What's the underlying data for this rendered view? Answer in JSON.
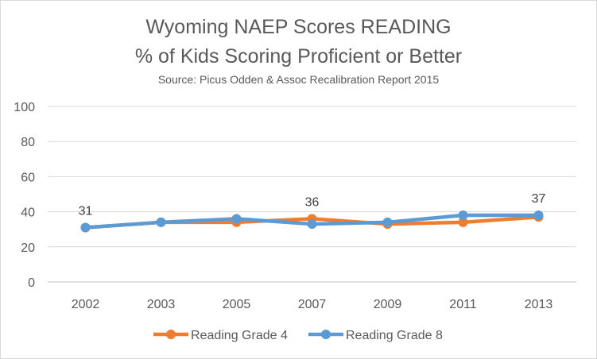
{
  "chart_data": {
    "type": "line",
    "title": "Wyoming NAEP Scores READING",
    "subtitle": "% of Kids Scoring Proficient or Better",
    "source": "Source: Picus Odden & Assoc Recalibration Report 2015",
    "categories": [
      "2002",
      "2003",
      "2005",
      "2007",
      "2009",
      "2011",
      "2013"
    ],
    "series": [
      {
        "name": "Reading Grade 4",
        "color": "#ED7D31",
        "values": [
          31,
          34,
          34,
          36,
          33,
          34,
          37
        ]
      },
      {
        "name": "Reading Grade 8",
        "color": "#5B9BD5",
        "values": [
          31,
          34,
          36,
          33,
          34,
          38,
          38
        ]
      }
    ],
    "data_labels": [
      {
        "category": "2002",
        "text": "31"
      },
      {
        "category": "2007",
        "text": "36"
      },
      {
        "category": "2013",
        "text": "37"
      }
    ],
    "ylim": [
      0,
      100
    ],
    "yticks": [
      0,
      20,
      40,
      60,
      80,
      100
    ],
    "grid": true,
    "legend": "bottom"
  }
}
